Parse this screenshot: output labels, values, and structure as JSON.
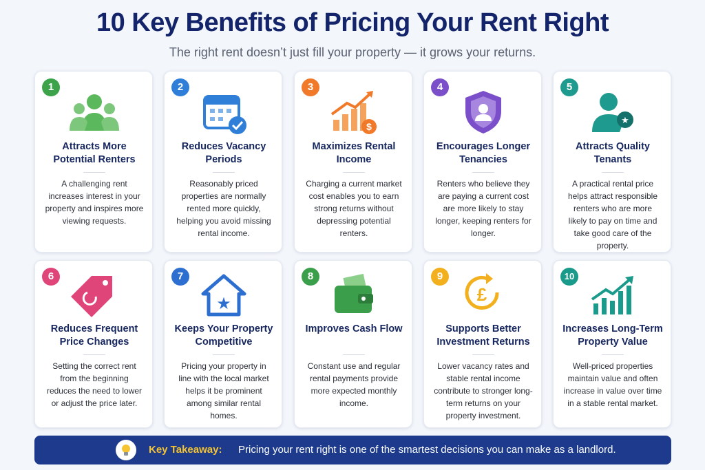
{
  "header": {
    "title": "10 Key Benefits of Pricing Your Rent Right",
    "subtitle": "The right rent doesn’t just fill your property — it grows your returns."
  },
  "cards": [
    {
      "number": "1",
      "title": "Attracts More Potential Renters",
      "text": "A challenging rent increases interest in your property and inspires more viewing requests."
    },
    {
      "number": "2",
      "title": "Reduces Vacancy Periods",
      "text": "Reasonably priced properties are normally rented more quickly, helping you avoid missing rental income."
    },
    {
      "number": "3",
      "title": "Maximizes Rental Income",
      "text": "Charging a current market cost enables you to earn strong returns without depressing potential renters."
    },
    {
      "number": "4",
      "title": "Encourages Longer Tenancies",
      "text": "Renters who believe they are paying a current cost are more likely to stay longer, keeping renters for longer."
    },
    {
      "number": "5",
      "title": "Attracts Quality Tenants",
      "text": "A practical rental price helps attract responsible renters who are more likely to pay on time and take good care of the property."
    },
    {
      "number": "6",
      "title": "Reduces Frequent Price Changes",
      "text": "Setting the correct rent from the beginning reduces the need to lower or adjust the price later."
    },
    {
      "number": "7",
      "title": "Keeps Your Property Competitive",
      "text": "Pricing your property in line with the local market helps it be prominent among similar rental homes."
    },
    {
      "number": "8",
      "title": "Improves Cash Flow",
      "text": "Constant use and regular rental payments provide more expected monthly income."
    },
    {
      "number": "9",
      "title": "Supports Better Investment Returns",
      "text": "Lower vacancy rates and stable rental income contribute to stronger long-term returns on your property investment."
    },
    {
      "number": "10",
      "title": "Increases Long-Term Property Value",
      "text": "Well-priced properties maintain value and often increase in value over time in a stable rental market."
    }
  ],
  "footer": {
    "label": "Key Takeaway:",
    "text": "Pricing your rent right is one of the smartest decisions you can make as a landlord."
  }
}
